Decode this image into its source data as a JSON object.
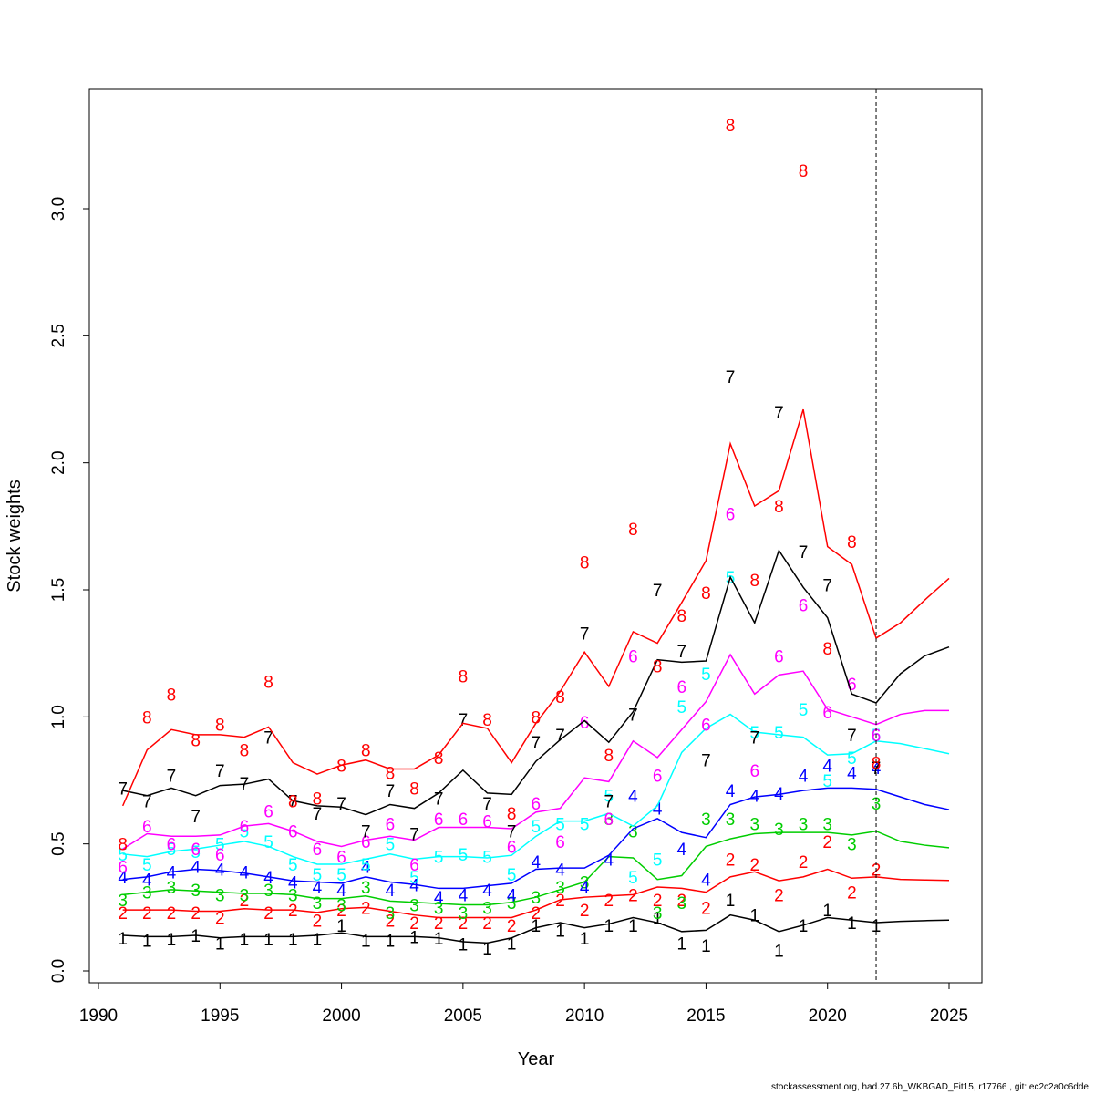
{
  "chart_data": {
    "type": "line",
    "xlabel": "Year",
    "ylabel": "Stock weights",
    "xlim": [
      1990,
      2026
    ],
    "ylim": [
      0,
      3.4
    ],
    "xticks": [
      1990,
      1995,
      2000,
      2005,
      2010,
      2015,
      2020,
      2025
    ],
    "yticks": [
      0.0,
      0.5,
      1.0,
      1.5,
      2.0,
      2.5,
      3.0
    ],
    "ytick_labels": [
      "0.0",
      "0.5",
      "1.0",
      "1.5",
      "2.0",
      "2.5",
      "3.0"
    ],
    "vline_x": 2022,
    "footer": "stockassessment.org, had.27.6b_WKBGAD_Fit15, r17766 , git: ec2c2a0c6dde",
    "series": [
      {
        "age": "1",
        "color": "#000000",
        "line_x": [
          1991,
          1992,
          1993,
          1994,
          1995,
          1996,
          1997,
          1998,
          1999,
          2000,
          2001,
          2002,
          2003,
          2004,
          2005,
          2006,
          2007,
          2008,
          2009,
          2010,
          2011,
          2012,
          2013,
          2014,
          2015,
          2016,
          2017,
          2018,
          2019,
          2020,
          2021,
          2022,
          2023,
          2024,
          2025
        ],
        "line_y": [
          0.14,
          0.135,
          0.135,
          0.14,
          0.13,
          0.135,
          0.135,
          0.135,
          0.14,
          0.15,
          0.135,
          0.135,
          0.135,
          0.13,
          0.115,
          0.11,
          0.13,
          0.17,
          0.19,
          0.17,
          0.185,
          0.21,
          0.19,
          0.155,
          0.16,
          0.22,
          0.2,
          0.155,
          0.18,
          0.21,
          0.2,
          0.19,
          0.195,
          0.198,
          0.2
        ],
        "obs_x": [
          1991,
          1992,
          1993,
          1994,
          1995,
          1996,
          1997,
          1998,
          1999,
          2000,
          2001,
          2002,
          2003,
          2004,
          2005,
          2006,
          2007,
          2008,
          2009,
          2010,
          2011,
          2012,
          2013,
          2014,
          2015,
          2016,
          2017,
          2018,
          2019,
          2020,
          2021,
          2022
        ],
        "obs_y": [
          0.13,
          0.12,
          0.125,
          0.14,
          0.11,
          0.125,
          0.125,
          0.125,
          0.125,
          0.18,
          0.12,
          0.12,
          0.135,
          0.13,
          0.105,
          0.09,
          0.11,
          0.18,
          0.16,
          0.13,
          0.18,
          0.18,
          0.21,
          0.11,
          0.1,
          0.28,
          0.22,
          0.08,
          0.18,
          0.24,
          0.19,
          0.18
        ]
      },
      {
        "age": "2",
        "color": "#ff0000",
        "line_x": [
          1991,
          1992,
          1993,
          1994,
          1995,
          1996,
          1997,
          1998,
          1999,
          2000,
          2001,
          2002,
          2003,
          2004,
          2005,
          2006,
          2007,
          2008,
          2009,
          2010,
          2011,
          2012,
          2013,
          2014,
          2015,
          2016,
          2017,
          2018,
          2019,
          2020,
          2021,
          2022,
          2023,
          2024,
          2025
        ],
        "line_y": [
          0.24,
          0.24,
          0.24,
          0.235,
          0.235,
          0.245,
          0.24,
          0.24,
          0.23,
          0.245,
          0.25,
          0.235,
          0.22,
          0.21,
          0.21,
          0.21,
          0.21,
          0.24,
          0.28,
          0.29,
          0.295,
          0.3,
          0.33,
          0.325,
          0.31,
          0.37,
          0.39,
          0.355,
          0.37,
          0.4,
          0.365,
          0.37,
          0.36,
          0.358,
          0.356
        ],
        "obs_x": [
          1991,
          1992,
          1993,
          1994,
          1995,
          1996,
          1997,
          1998,
          1999,
          2000,
          2001,
          2002,
          2003,
          2004,
          2005,
          2006,
          2007,
          2008,
          2009,
          2010,
          2011,
          2012,
          2013,
          2014,
          2015,
          2016,
          2017,
          2018,
          2019,
          2020,
          2021,
          2022
        ],
        "obs_y": [
          0.23,
          0.23,
          0.23,
          0.23,
          0.21,
          0.28,
          0.23,
          0.24,
          0.2,
          0.24,
          0.25,
          0.2,
          0.19,
          0.19,
          0.19,
          0.19,
          0.18,
          0.23,
          0.28,
          0.24,
          0.28,
          0.3,
          0.28,
          0.28,
          0.25,
          0.44,
          0.42,
          0.3,
          0.43,
          0.51,
          0.31,
          0.4
        ]
      },
      {
        "age": "3",
        "color": "#00cd00",
        "line_x": [
          1991,
          1992,
          1993,
          1994,
          1995,
          1996,
          1997,
          1998,
          1999,
          2000,
          2001,
          2002,
          2003,
          2004,
          2005,
          2006,
          2007,
          2008,
          2009,
          2010,
          2011,
          2012,
          2013,
          2014,
          2015,
          2016,
          2017,
          2018,
          2019,
          2020,
          2021,
          2022,
          2023,
          2024,
          2025
        ],
        "line_y": [
          0.3,
          0.31,
          0.32,
          0.315,
          0.31,
          0.305,
          0.305,
          0.3,
          0.285,
          0.285,
          0.295,
          0.275,
          0.27,
          0.265,
          0.26,
          0.26,
          0.27,
          0.29,
          0.32,
          0.35,
          0.45,
          0.445,
          0.36,
          0.375,
          0.49,
          0.52,
          0.54,
          0.545,
          0.545,
          0.545,
          0.535,
          0.55,
          0.51,
          0.495,
          0.485
        ],
        "obs_x": [
          1991,
          1992,
          1993,
          1994,
          1995,
          1996,
          1997,
          1998,
          1999,
          2000,
          2001,
          2002,
          2003,
          2004,
          2005,
          2006,
          2007,
          2008,
          2009,
          2010,
          2011,
          2012,
          2013,
          2014,
          2015,
          2016,
          2017,
          2018,
          2019,
          2020,
          2021,
          2022
        ],
        "obs_y": [
          0.28,
          0.31,
          0.33,
          0.32,
          0.3,
          0.3,
          0.32,
          0.3,
          0.27,
          0.26,
          0.33,
          0.23,
          0.26,
          0.25,
          0.23,
          0.25,
          0.27,
          0.29,
          0.33,
          0.35,
          0.6,
          0.55,
          0.23,
          0.27,
          0.6,
          0.6,
          0.58,
          0.56,
          0.58,
          0.58,
          0.5,
          0.66
        ]
      },
      {
        "age": "4",
        "color": "#0000ff",
        "line_x": [
          1991,
          1992,
          1993,
          1994,
          1995,
          1996,
          1997,
          1998,
          1999,
          2000,
          2001,
          2002,
          2003,
          2004,
          2005,
          2006,
          2007,
          2008,
          2009,
          2010,
          2011,
          2012,
          2013,
          2014,
          2015,
          2016,
          2017,
          2018,
          2019,
          2020,
          2021,
          2022,
          2023,
          2024,
          2025
        ],
        "line_y": [
          0.36,
          0.37,
          0.39,
          0.4,
          0.395,
          0.385,
          0.37,
          0.355,
          0.35,
          0.345,
          0.37,
          0.35,
          0.34,
          0.325,
          0.325,
          0.335,
          0.345,
          0.4,
          0.405,
          0.405,
          0.455,
          0.56,
          0.6,
          0.545,
          0.525,
          0.655,
          0.685,
          0.695,
          0.71,
          0.72,
          0.72,
          0.715,
          0.685,
          0.655,
          0.635
        ],
        "obs_x": [
          1991,
          1992,
          1993,
          1994,
          1995,
          1996,
          1997,
          1998,
          1999,
          2000,
          2001,
          2002,
          2003,
          2004,
          2005,
          2006,
          2007,
          2008,
          2009,
          2010,
          2011,
          2012,
          2013,
          2014,
          2015,
          2016,
          2017,
          2018,
          2019,
          2020,
          2021,
          2022
        ],
        "obs_y": [
          0.37,
          0.36,
          0.39,
          0.41,
          0.4,
          0.39,
          0.37,
          0.35,
          0.33,
          0.32,
          0.41,
          0.32,
          0.34,
          0.29,
          0.3,
          0.32,
          0.3,
          0.43,
          0.4,
          0.33,
          0.44,
          0.69,
          0.64,
          0.48,
          0.36,
          0.71,
          0.69,
          0.7,
          0.77,
          0.81,
          0.78,
          0.8
        ]
      },
      {
        "age": "5",
        "color": "#00ffff",
        "line_x": [
          1991,
          1992,
          1993,
          1994,
          1995,
          1996,
          1997,
          1998,
          1999,
          2000,
          2001,
          2002,
          2003,
          2004,
          2005,
          2006,
          2007,
          2008,
          2009,
          2010,
          2011,
          2012,
          2013,
          2014,
          2015,
          2016,
          2017,
          2018,
          2019,
          2020,
          2021,
          2022,
          2023,
          2024,
          2025
        ],
        "line_y": [
          0.46,
          0.45,
          0.47,
          0.48,
          0.495,
          0.51,
          0.49,
          0.45,
          0.42,
          0.42,
          0.44,
          0.46,
          0.44,
          0.45,
          0.45,
          0.445,
          0.455,
          0.53,
          0.59,
          0.59,
          0.62,
          0.57,
          0.65,
          0.86,
          0.955,
          1.01,
          0.94,
          0.93,
          0.92,
          0.85,
          0.855,
          0.905,
          0.895,
          0.875,
          0.855
        ],
        "obs_x": [
          1991,
          1992,
          1993,
          1994,
          1995,
          1996,
          1997,
          1998,
          1999,
          2000,
          2001,
          2002,
          2003,
          2004,
          2005,
          2006,
          2007,
          2008,
          2009,
          2010,
          2011,
          2012,
          2013,
          2014,
          2015,
          2016,
          2017,
          2018,
          2019,
          2020,
          2021,
          2022
        ],
        "obs_y": [
          0.46,
          0.42,
          0.48,
          0.47,
          0.5,
          0.55,
          0.51,
          0.42,
          0.38,
          0.38,
          0.42,
          0.5,
          0.37,
          0.45,
          0.46,
          0.45,
          0.38,
          0.57,
          0.58,
          0.58,
          0.69,
          0.37,
          0.44,
          1.04,
          1.17,
          1.55,
          0.94,
          0.94,
          1.03,
          0.75,
          0.84,
          0.93
        ]
      },
      {
        "age": "6",
        "color": "#ff00ff",
        "line_x": [
          1991,
          1992,
          1993,
          1994,
          1995,
          1996,
          1997,
          1998,
          1999,
          2000,
          2001,
          2002,
          2003,
          2004,
          2005,
          2006,
          2007,
          2008,
          2009,
          2010,
          2011,
          2012,
          2013,
          2014,
          2015,
          2016,
          2017,
          2018,
          2019,
          2020,
          2021,
          2022,
          2023,
          2024,
          2025
        ],
        "line_y": [
          0.48,
          0.54,
          0.53,
          0.53,
          0.535,
          0.57,
          0.58,
          0.55,
          0.51,
          0.49,
          0.515,
          0.53,
          0.515,
          0.565,
          0.565,
          0.565,
          0.56,
          0.625,
          0.64,
          0.76,
          0.745,
          0.905,
          0.84,
          0.95,
          1.06,
          1.245,
          1.09,
          1.165,
          1.18,
          1.03,
          1.0,
          0.97,
          1.01,
          1.025,
          1.025
        ],
        "obs_x": [
          1991,
          1992,
          1993,
          1994,
          1995,
          1996,
          1997,
          1998,
          1999,
          2000,
          2001,
          2002,
          2003,
          2004,
          2005,
          2006,
          2007,
          2008,
          2009,
          2010,
          2011,
          2012,
          2013,
          2014,
          2015,
          2016,
          2017,
          2018,
          2019,
          2020,
          2021,
          2022
        ],
        "obs_y": [
          0.41,
          0.57,
          0.5,
          0.48,
          0.46,
          0.57,
          0.63,
          0.55,
          0.48,
          0.45,
          0.51,
          0.58,
          0.42,
          0.6,
          0.6,
          0.59,
          0.49,
          0.66,
          0.51,
          0.98,
          0.6,
          1.24,
          0.77,
          1.12,
          0.97,
          1.8,
          0.79,
          1.24,
          1.44,
          1.02,
          1.13,
          0.93
        ]
      },
      {
        "age": "7",
        "color": "#000000",
        "line_x": [
          1991,
          1992,
          1993,
          1994,
          1995,
          1996,
          1997,
          1998,
          1999,
          2000,
          2001,
          2002,
          2003,
          2004,
          2005,
          2006,
          2007,
          2008,
          2009,
          2010,
          2011,
          2012,
          2013,
          2014,
          2015,
          2016,
          2017,
          2018,
          2019,
          2020,
          2021,
          2022,
          2023,
          2024,
          2025
        ],
        "line_y": [
          0.71,
          0.69,
          0.72,
          0.69,
          0.73,
          0.735,
          0.755,
          0.67,
          0.65,
          0.645,
          0.615,
          0.655,
          0.64,
          0.7,
          0.79,
          0.7,
          0.695,
          0.825,
          0.91,
          0.985,
          0.9,
          1.02,
          1.225,
          1.215,
          1.22,
          1.55,
          1.37,
          1.655,
          1.51,
          1.39,
          1.09,
          1.055,
          1.17,
          1.24,
          1.275
        ],
        "obs_x": [
          1991,
          1992,
          1993,
          1994,
          1995,
          1996,
          1997,
          1998,
          1999,
          2000,
          2001,
          2002,
          2003,
          2004,
          2005,
          2006,
          2007,
          2008,
          2009,
          2010,
          2011,
          2012,
          2013,
          2014,
          2015,
          2016,
          2017,
          2018,
          2019,
          2020,
          2021,
          2022
        ],
        "obs_y": [
          0.72,
          0.67,
          0.77,
          0.61,
          0.79,
          0.74,
          0.92,
          0.67,
          0.62,
          0.66,
          0.55,
          0.71,
          0.54,
          0.68,
          0.99,
          0.66,
          0.55,
          0.9,
          0.93,
          1.33,
          0.67,
          1.01,
          1.5,
          1.26,
          0.83,
          2.34,
          0.92,
          2.2,
          1.65,
          1.52,
          0.93,
          0.8
        ]
      },
      {
        "age": "8",
        "color": "#ff0000",
        "line_x": [
          1991,
          1992,
          1993,
          1994,
          1995,
          1996,
          1997,
          1998,
          1999,
          2000,
          2001,
          2002,
          2003,
          2004,
          2005,
          2006,
          2007,
          2008,
          2009,
          2010,
          2011,
          2012,
          2013,
          2014,
          2015,
          2016,
          2017,
          2018,
          2019,
          2020,
          2021,
          2022,
          2023,
          2024,
          2025
        ],
        "line_y": [
          0.65,
          0.87,
          0.95,
          0.93,
          0.93,
          0.92,
          0.96,
          0.82,
          0.775,
          0.81,
          0.83,
          0.795,
          0.795,
          0.85,
          0.975,
          0.955,
          0.82,
          0.975,
          1.1,
          1.255,
          1.12,
          1.335,
          1.29,
          1.45,
          1.615,
          2.075,
          1.83,
          1.89,
          2.21,
          1.67,
          1.6,
          1.31,
          1.37,
          1.46,
          1.545
        ],
        "obs_x": [
          1991,
          1992,
          1993,
          1994,
          1995,
          1996,
          1997,
          1998,
          1999,
          2000,
          2001,
          2002,
          2003,
          2004,
          2005,
          2006,
          2007,
          2008,
          2009,
          2010,
          2011,
          2012,
          2013,
          2014,
          2015,
          2016,
          2017,
          2018,
          2019,
          2020,
          2021,
          2022
        ],
        "obs_y": [
          0.5,
          1.0,
          1.09,
          0.91,
          0.97,
          0.87,
          1.14,
          0.67,
          0.68,
          0.81,
          0.87,
          0.78,
          0.72,
          0.84,
          1.16,
          0.99,
          0.62,
          1.0,
          1.08,
          1.61,
          0.85,
          1.74,
          1.2,
          1.4,
          1.49,
          3.33,
          1.54,
          1.83,
          3.15,
          1.27,
          1.69,
          0.82
        ]
      }
    ]
  }
}
